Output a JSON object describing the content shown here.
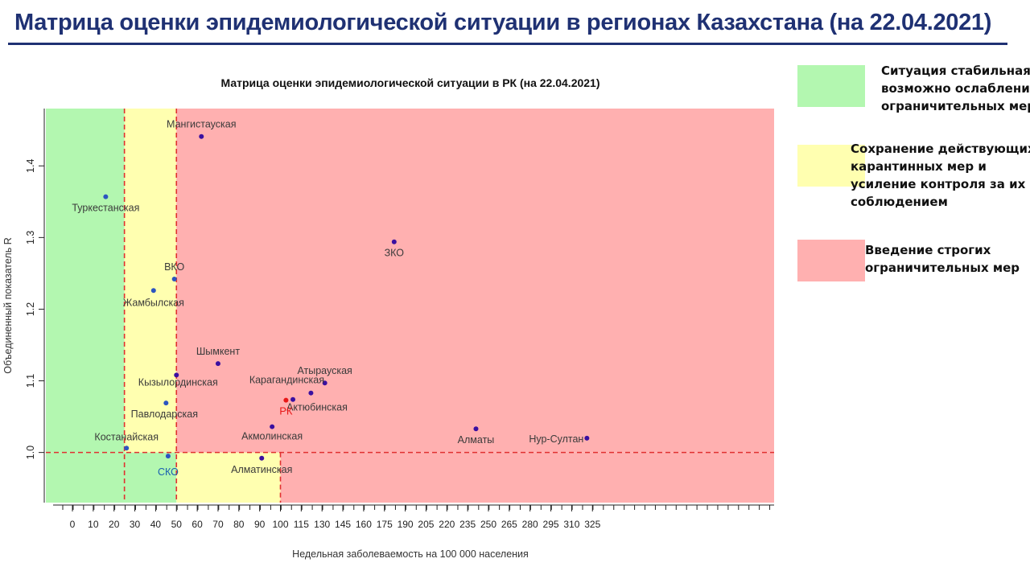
{
  "page": {
    "title": "Матрица оценки эпидемиологической ситуации в регионах Казахстана (на 22.04.2021)"
  },
  "legend": [
    {
      "color": "#b3f7b0",
      "text": "Ситуация стабильная, возможно ослабление ограничительных мер"
    },
    {
      "color": "#ffffb0",
      "text": "Сохранение действующих карантинных мер и усиление контроля за их соблюдением"
    },
    {
      "color": "#ffb0b0",
      "text": "Введение строгих ограничительных мер"
    }
  ],
  "chart_data": {
    "type": "scatter",
    "title": "Матрица оценки эпидемиологической ситуации в РК (на 22.04.2021)",
    "xlabel": "Недельная заболеваемость на 100 000 населения",
    "ylabel": "Объединенный показатель R",
    "x_ticks": [
      0,
      10,
      20,
      30,
      40,
      50,
      60,
      70,
      80,
      90,
      100,
      115,
      130,
      145,
      160,
      175,
      190,
      205,
      220,
      235,
      250,
      265,
      280,
      295,
      310,
      325
    ],
    "y_ticks": [
      1.0,
      1.1,
      1.2,
      1.3,
      1.4
    ],
    "y_tick_labels": [
      "1.0",
      "1.1",
      "1.2",
      "1.3",
      "1.4"
    ],
    "xlim": [
      -13,
      337
    ],
    "ylim": [
      0.93,
      1.48
    ],
    "grid": false,
    "zones": [
      {
        "name": "green",
        "color": "#b3f7b0",
        "x0": -13,
        "x1": 50,
        "y0": 1.0,
        "y1": 1.48
      },
      {
        "name": "green-low",
        "color": "#b3f7b0",
        "x0": -13,
        "x1": 50,
        "y0": 0.93,
        "y1": 1.0
      },
      {
        "name": "yellow-top",
        "color": "#ffffb0",
        "x0": 25,
        "x1": 50,
        "y0": 1.0,
        "y1": 1.48
      },
      {
        "name": "yellow-bottom",
        "color": "#ffffb0",
        "x0": 50,
        "x1": 100,
        "y0": 0.93,
        "y1": 1.0
      },
      {
        "name": "red-top",
        "color": "#ffb0b0",
        "x0": 50,
        "x1": 337,
        "y0": 1.0,
        "y1": 1.48
      },
      {
        "name": "red-bottom",
        "color": "#ffb0b0",
        "x0": 100,
        "x1": 337,
        "y0": 0.93,
        "y1": 1.0
      }
    ],
    "threshold_lines": {
      "x": [
        25,
        50,
        100
      ],
      "y": 1.0,
      "color": "#e03030"
    },
    "points": [
      {
        "name": "Мангистауская",
        "x": 62,
        "y": 1.441,
        "color": "#3a10a0"
      },
      {
        "name": "Туркестанская",
        "x": 16,
        "y": 1.357,
        "color": "#2c55c0"
      },
      {
        "name": "ЗКО",
        "x": 182,
        "y": 1.294,
        "color": "#3a10a0"
      },
      {
        "name": "ВКО",
        "x": 49,
        "y": 1.242,
        "color": "#2c55c0"
      },
      {
        "name": "Жамбылская",
        "x": 39,
        "y": 1.226,
        "color": "#2c55c0"
      },
      {
        "name": "Шымкент",
        "x": 70,
        "y": 1.124,
        "color": "#3a10a0"
      },
      {
        "name": "Атырауская",
        "x": 132,
        "y": 1.097,
        "color": "#3a10a0"
      },
      {
        "name": "Карагандинская",
        "x": 122,
        "y": 1.083,
        "color": "#3a10a0"
      },
      {
        "name": "Кызылординская",
        "x": 50,
        "y": 1.108,
        "color": "#3a10a0"
      },
      {
        "name": "Павлодарская",
        "x": 45,
        "y": 1.069,
        "color": "#2c55c0"
      },
      {
        "name": "Актюбинская",
        "x": 109,
        "y": 1.074,
        "color": "#3a10a0"
      },
      {
        "name": "РК",
        "x": 104,
        "y": 1.073,
        "color": "#e81818"
      },
      {
        "name": "Акмолинская",
        "x": 96,
        "y": 1.036,
        "color": "#3a10a0"
      },
      {
        "name": "Алматы",
        "x": 241,
        "y": 1.033,
        "color": "#3a10a0"
      },
      {
        "name": "Нур-Султан",
        "x": 321,
        "y": 1.02,
        "color": "#3a10a0"
      },
      {
        "name": "Костанайская",
        "x": 26,
        "y": 1.006,
        "color": "#2c55c0"
      },
      {
        "name": "СКО",
        "x": 46,
        "y": 0.995,
        "color": "#2c55c0"
      },
      {
        "name": "Алматинская",
        "x": 91,
        "y": 0.992,
        "color": "#3a10a0"
      }
    ]
  }
}
